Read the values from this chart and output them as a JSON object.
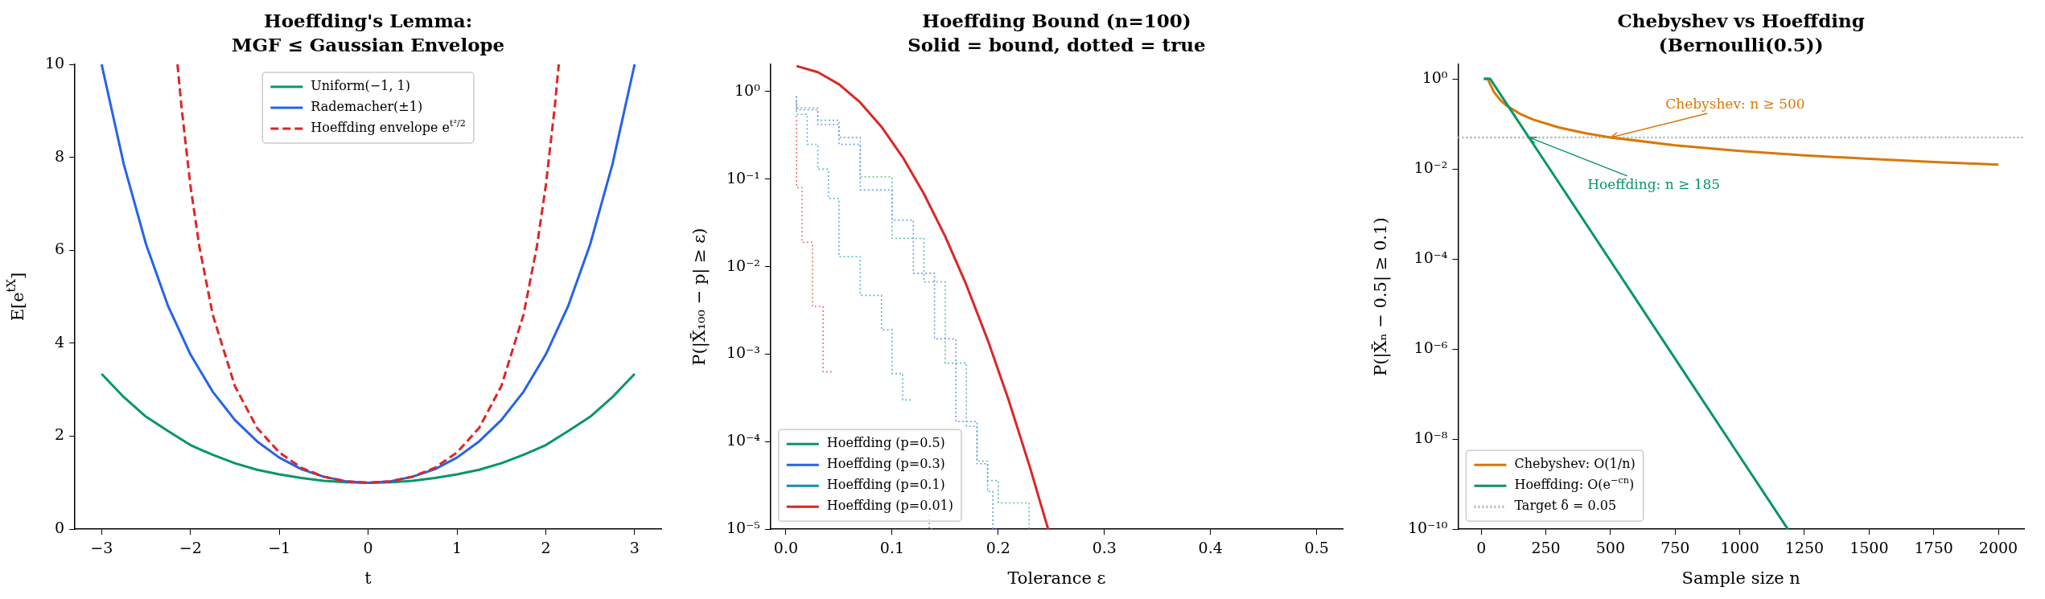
{
  "chart_data": [
    {
      "type": "line",
      "title": "Hoeffding's Lemma:\nMGF ≤ Gaussian Envelope",
      "xlabel": "t",
      "ylabel": "E[e$^{tX}$]",
      "xlim": [
        -3.3,
        3.3
      ],
      "ylim": [
        0,
        10
      ],
      "xticks": [
        {
          "value": -3,
          "label": "−3"
        },
        {
          "value": -2,
          "label": "−2"
        },
        {
          "value": -1,
          "label": "−1"
        },
        0,
        1,
        2,
        3
      ],
      "yticks": [
        0,
        2,
        4,
        6,
        8,
        10
      ],
      "legend": "top",
      "marker": "none",
      "series": [
        {
          "name": "Uniform(−1, 1)",
          "color": "#059669",
          "line_style": "solid",
          "x": [
            -3,
            -2.75,
            -2.5,
            -2.25,
            -2,
            -1.75,
            -1.5,
            -1.25,
            -1,
            -0.75,
            -0.5,
            -0.25,
            0,
            0.25,
            0.5,
            0.75,
            1,
            1.25,
            1.5,
            1.75,
            2,
            2.25,
            2.5,
            2.75,
            3
          ],
          "values": [
            3.34,
            2.84,
            2.42,
            2.11,
            1.81,
            1.6,
            1.42,
            1.28,
            1.18,
            1.1,
            1.04,
            1.01,
            1,
            1.01,
            1.04,
            1.1,
            1.18,
            1.28,
            1.42,
            1.6,
            1.81,
            2.11,
            2.42,
            2.84,
            3.34
          ]
        },
        {
          "name": "Rademacher(±1)",
          "color": "#2563eb",
          "line_style": "solid",
          "x": [
            -3,
            -2.75,
            -2.5,
            -2.25,
            -2,
            -1.75,
            -1.5,
            -1.25,
            -1,
            -0.75,
            -0.5,
            -0.25,
            0,
            0.25,
            0.5,
            0.75,
            1,
            1.25,
            1.5,
            1.75,
            2,
            2.25,
            2.5,
            2.75,
            3
          ],
          "values": [
            10,
            7.85,
            6.13,
            4.79,
            3.76,
            2.96,
            2.35,
            1.89,
            1.54,
            1.29,
            1.13,
            1.03,
            1,
            1.03,
            1.13,
            1.29,
            1.54,
            1.89,
            2.35,
            2.96,
            3.76,
            4.79,
            6.13,
            7.85,
            10
          ]
        },
        {
          "name": "Hoeffding envelope e$^{t²/2}$",
          "color": "#dc2626",
          "line_style": "dashed",
          "x": [
            -2.146,
            -2.1,
            -2,
            -1.9,
            -1.75,
            -1.5,
            -1.25,
            -1,
            -0.75,
            -0.5,
            -0.25,
            0,
            0.25,
            0.5,
            0.75,
            1,
            1.25,
            1.5,
            1.75,
            1.9,
            2,
            2.1,
            2.146
          ],
          "values": [
            10,
            9.07,
            7.39,
            6.08,
            4.62,
            3.08,
            2.18,
            1.65,
            1.32,
            1.13,
            1.03,
            1,
            1.03,
            1.13,
            1.32,
            1.65,
            2.18,
            3.08,
            4.62,
            6.08,
            7.39,
            9.07,
            10
          ]
        }
      ]
    },
    {
      "type": "line",
      "title": "Hoeffding Bound (n=100)\nSolid = bound, dotted = true",
      "xlabel": "Tolerance ε",
      "ylabel": "P(|X̄₁₀₀ − p| ≥ ε)",
      "log": "y",
      "xlim": [
        -0.0145,
        0.5245
      ],
      "ylim": [
        1e-05,
        2.05
      ],
      "xticks": [
        {
          "value": 0,
          "label": "0.0"
        },
        0.1,
        0.2,
        0.3,
        0.4,
        0.5
      ],
      "yticks": [
        {
          "value": 1e-05,
          "label": "10⁻⁵"
        },
        {
          "value": 0.0001,
          "label": "10⁻⁴"
        },
        {
          "value": 0.001,
          "label": "10⁻³"
        },
        {
          "value": 0.01,
          "label": "10⁻²"
        },
        {
          "value": 0.1,
          "label": "10⁻¹"
        },
        {
          "value": 1,
          "label": "10⁰"
        }
      ],
      "legend": "bottom left",
      "marker": "none",
      "series": [
        {
          "name": "Hoeffding (p=0.5)",
          "color": "#059669",
          "line_style": "solid"
        },
        {
          "name": "Hoeffding (p=0.3)",
          "color": "#2563eb",
          "line_style": "solid"
        },
        {
          "name": "Hoeffding (p=0.1)",
          "color": "#0891b2",
          "line_style": "solid"
        },
        {
          "name": "Hoeffding (p=0.01)",
          "color": "#dc2626",
          "line_style": "solid",
          "x": [
            0.01,
            0.03,
            0.05,
            0.07,
            0.09,
            0.11,
            0.13,
            0.15,
            0.17,
            0.19,
            0.21,
            0.23,
            0.247
          ],
          "values": [
            1.96,
            1.67,
            1.21,
            0.751,
            0.396,
            0.178,
            0.068,
            0.0222,
            0.00617,
            0.00146,
            0.000294,
            5.04e-05,
            1e-05
          ]
        },
        {
          "type": "step",
          "color": "#5fbf9f",
          "line_style": "dotted",
          "x": [
            0.01,
            0.03,
            0.05,
            0.07,
            0.1,
            0.13,
            0.15,
            0.17,
            0.18,
            0.19,
            0.2,
            0.21,
            0.229,
            0.23
          ],
          "values": [
            0.89,
            0.65,
            0.47,
            0.3,
            0.106,
            0.021,
            0.0067,
            0.00079,
            0.00015,
            6e-05,
            3.6e-05,
            2e-05,
            2e-05,
            1e-05
          ]
        },
        {
          "type": "step",
          "color": "#6f97f0",
          "line_style": "dotted",
          "x": [
            0.01,
            0.03,
            0.05,
            0.07,
            0.1,
            0.12,
            0.14,
            0.16,
            0.18,
            0.19,
            0.195,
            0.2
          ],
          "values": [
            0.88,
            0.62,
            0.42,
            0.25,
            0.075,
            0.034,
            0.0084,
            0.0015,
            0.00017,
            5.6e-05,
            2.7e-05,
            1e-05
          ]
        },
        {
          "type": "step",
          "color": "#5ab5cc",
          "line_style": "dotted",
          "x": [
            0.01,
            0.02,
            0.03,
            0.04,
            0.05,
            0.07,
            0.09,
            0.1,
            0.11,
            0.12,
            0.13,
            0.135,
            0.14
          ],
          "values": [
            0.75,
            0.55,
            0.25,
            0.13,
            0.06,
            0.013,
            0.0047,
            0.0019,
            0.0006,
            0.0003,
            null,
            4.7e-05,
            1e-05
          ]
        },
        {
          "type": "step",
          "color": "#ea7373",
          "line_style": "dotted",
          "x": [
            0.01,
            0.015,
            0.025,
            0.035,
            0.045
          ],
          "values": [
            0.53,
            0.08,
            0.019,
            0.0035,
            0.00063
          ]
        }
      ]
    },
    {
      "type": "line",
      "title": "Chebyshev vs Hoeffding\n(Bernoulli(0.5))",
      "xlabel": "Sample size n",
      "ylabel": "P(|X̄ₙ − 0.5| ≥ 0.1)",
      "log": "y",
      "xlim": [
        -89.5,
        2099.5
      ],
      "ylim": [
        1e-10,
        2.1
      ],
      "xticks": [
        0,
        250,
        500,
        750,
        1000,
        1250,
        1500,
        1750,
        2000
      ],
      "yticks": [
        {
          "value": 1e-10,
          "label": "10⁻¹⁰"
        },
        {
          "value": 1e-08,
          "label": "10⁻⁸"
        },
        {
          "value": 1e-06,
          "label": "10⁻⁶"
        },
        {
          "value": 0.0001,
          "label": "10⁻⁴"
        },
        {
          "value": 0.01,
          "label": "10⁻²"
        },
        {
          "value": 1,
          "label": "10⁰"
        }
      ],
      "legend": "bottom left",
      "marker": "none",
      "ref_lines": [
        {
          "axis": "y",
          "value": 0.05,
          "label": "Target δ = 0.05",
          "color": "#b0b0b0",
          "line_style": "dotted"
        }
      ],
      "annotations": [
        {
          "text": "Chebyshev: n ≥ 500",
          "x": 500,
          "y": 0.05
        },
        {
          "text": "Hoeffding: n ≥ 185",
          "x": 185,
          "y": 0.05
        }
      ],
      "series": [
        {
          "name": "Chebyshev: O(1/n)",
          "color": "#d97706",
          "line_style": "solid",
          "x": [
            10,
            25,
            50,
            75,
            100,
            150,
            200,
            300,
            400,
            500,
            750,
            1000,
            1250,
            1500,
            1750,
            2000
          ],
          "values": [
            1,
            1,
            0.5,
            0.333,
            0.25,
            0.167,
            0.125,
            0.0833,
            0.0625,
            0.05,
            0.0333,
            0.025,
            0.02,
            0.0167,
            0.0143,
            0.0125
          ]
        },
        {
          "name": "Hoeffding: O(e$^{−cn}$)",
          "color": "#059669",
          "line_style": "solid",
          "x": [
            10,
            35,
            50,
            100,
            185,
            250,
            500,
            750,
            1000,
            1186
          ],
          "values": [
            1,
            1,
            0.736,
            0.271,
            0.0494,
            0.0135,
            9.08e-05,
            6.12e-07,
            4.12e-09,
            1e-10
          ]
        }
      ]
    }
  ]
}
